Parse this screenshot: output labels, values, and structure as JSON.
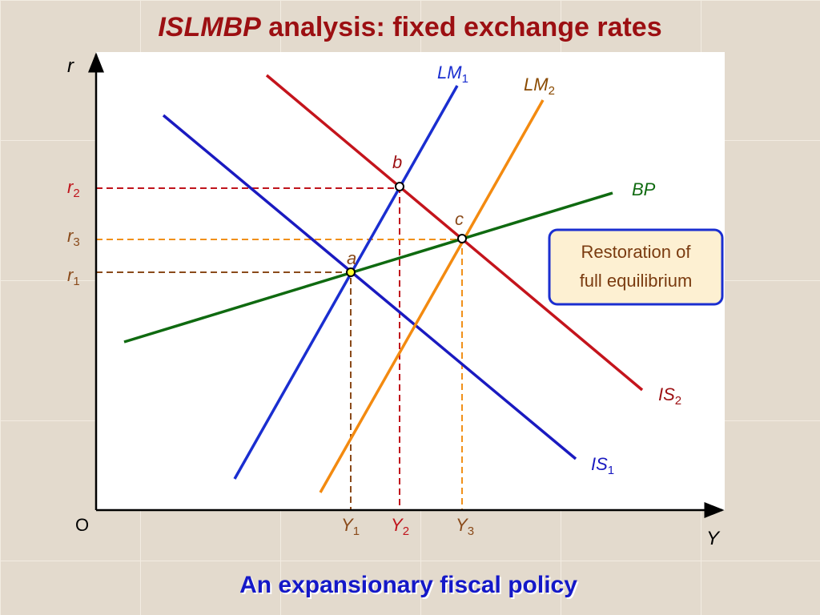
{
  "title": {
    "emphasis": "ISLMBP",
    "rest": "analysis: fixed exchange rates"
  },
  "axes": {
    "y_label": "r",
    "x_label": "Y",
    "origin": "O"
  },
  "curves": [
    {
      "base": "LM",
      "sub": "1"
    },
    {
      "base": "LM",
      "sub": "2"
    },
    {
      "base": "BP"
    },
    {
      "base": "IS",
      "sub": "2"
    },
    {
      "base": "IS",
      "sub": "1"
    }
  ],
  "points": [
    "a",
    "b",
    "c"
  ],
  "y_levels": [
    {
      "base": "r",
      "sub": "2"
    },
    {
      "base": "r",
      "sub": "3"
    },
    {
      "base": "r",
      "sub": "1"
    }
  ],
  "x_levels": [
    {
      "base": "Y",
      "sub": "1"
    },
    {
      "base": "Y",
      "sub": "2"
    },
    {
      "base": "Y",
      "sub": "3"
    }
  ],
  "callout": [
    "Restoration of",
    "full equilibrium"
  ],
  "caption": "An expansionary fiscal policy"
}
